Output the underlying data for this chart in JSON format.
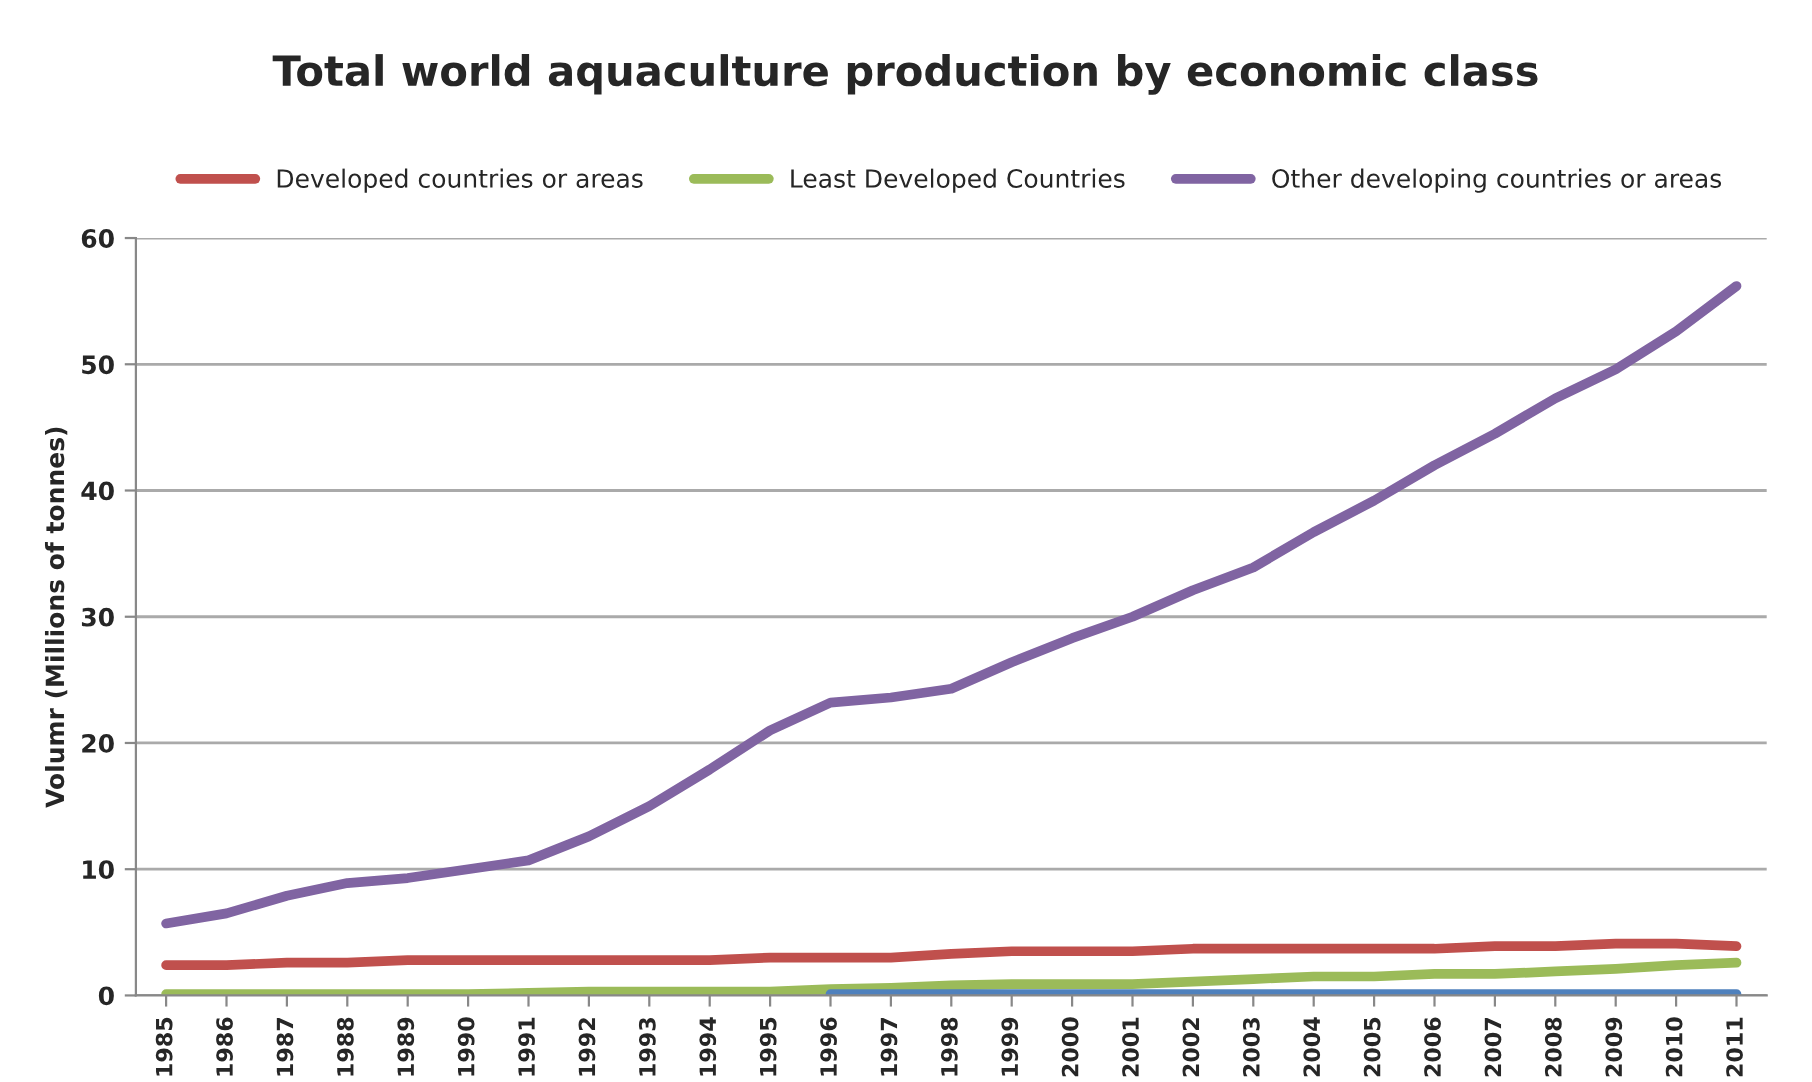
{
  "chart_data": {
    "type": "line",
    "title": "Total world aquaculture production by economic class",
    "ylabel": "Volumr (Millions of tonnes)",
    "categories": [
      "1985",
      "1986",
      "1987",
      "1988",
      "1989",
      "1990",
      "1991",
      "1992",
      "1993",
      "1994",
      "1995",
      "1996",
      "1997",
      "1998",
      "1999",
      "2000",
      "2001",
      "2002",
      "2003",
      "2004",
      "2005",
      "2006",
      "2007",
      "2008",
      "2009",
      "2010",
      "2011"
    ],
    "series": [
      {
        "name": "Developed countries or areas",
        "color": "#c0504d",
        "values": [
          2.4,
          2.4,
          2.6,
          2.6,
          2.8,
          2.8,
          2.8,
          2.8,
          2.8,
          2.8,
          3.0,
          3.0,
          3.0,
          3.3,
          3.5,
          3.5,
          3.5,
          3.7,
          3.7,
          3.7,
          3.7,
          3.7,
          3.9,
          3.9,
          4.1,
          4.1,
          3.9
        ]
      },
      {
        "name": "Least Developed Countries",
        "color": "#9bbb59",
        "values": [
          0.1,
          0.1,
          0.1,
          0.1,
          0.1,
          0.1,
          0.2,
          0.3,
          0.3,
          0.3,
          0.3,
          0.5,
          0.6,
          0.8,
          0.9,
          0.9,
          0.9,
          1.1,
          1.3,
          1.5,
          1.5,
          1.7,
          1.7,
          1.9,
          2.1,
          2.4,
          2.6
        ]
      },
      {
        "name": "Other developing countries or areas",
        "color": "#8064a2",
        "values": [
          5.7,
          6.5,
          7.9,
          8.9,
          9.3,
          10.0,
          10.7,
          12.6,
          15.0,
          17.9,
          21.0,
          23.2,
          23.6,
          24.3,
          26.4,
          28.3,
          30.0,
          32.1,
          33.9,
          36.7,
          39.2,
          42.0,
          44.5,
          47.3,
          49.6,
          52.6,
          56.2
        ]
      },
      {
        "color": "#4f81bd",
        "values": [
          null,
          null,
          null,
          null,
          null,
          null,
          null,
          null,
          null,
          null,
          null,
          0.1,
          0.1,
          0.1,
          0.1,
          0.1,
          0.1,
          0.1,
          0.1,
          0.1,
          0.1,
          0.1,
          0.1,
          0.1,
          0.1,
          0.1,
          0.1
        ]
      }
    ],
    "ylim": [
      0,
      60
    ],
    "yticks": [
      0,
      10,
      20,
      30,
      40,
      50,
      60
    ],
    "grid": "y",
    "legend": "top",
    "line_style": "solid",
    "marker": "none"
  }
}
